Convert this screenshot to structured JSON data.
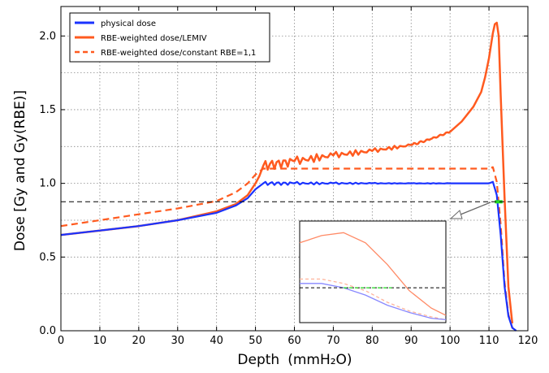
{
  "chart_data": {
    "type": "line",
    "xlabel": "Depth",
    "xlabel_unit": "(mmH₂O)",
    "ylabel": "Dose [Gy and Gy(RBE)]",
    "xlim": [
      0,
      120
    ],
    "ylim": [
      0,
      2.2
    ],
    "x_ticks": [
      0,
      10,
      20,
      30,
      40,
      50,
      60,
      70,
      80,
      90,
      100,
      110,
      120
    ],
    "y_ticks": [
      0.0,
      0.5,
      1.0,
      1.5,
      2.0
    ],
    "y_tick_labels": [
      "0.0",
      "0.5",
      "1.0",
      "1.5",
      "2.0"
    ],
    "grid": true,
    "legend_position": "top-left",
    "reference_line": {
      "y": 0.875,
      "style": "dashed",
      "color": "#000000"
    },
    "series": [
      {
        "name": "physical dose",
        "color": "#1a33ff",
        "style": "solid",
        "x": [
          0,
          10,
          20,
          30,
          40,
          45,
          48,
          50,
          52,
          60,
          70,
          80,
          90,
          100,
          108,
          110,
          111,
          112,
          113,
          114,
          115,
          116,
          117
        ],
        "y": [
          0.65,
          0.68,
          0.71,
          0.75,
          0.8,
          0.85,
          0.9,
          0.96,
          1.0,
          1.0,
          1.0,
          1.0,
          1.0,
          1.0,
          1.0,
          1.0,
          1.01,
          0.92,
          0.65,
          0.3,
          0.1,
          0.02,
          0.0
        ]
      },
      {
        "name": "RBE-weighted dose/LEMIV",
        "color": "#ff5a1f",
        "style": "solid",
        "x": [
          0,
          10,
          20,
          30,
          40,
          45,
          48,
          50,
          51,
          52,
          60,
          70,
          80,
          90,
          95,
          100,
          103,
          106,
          108,
          109,
          110,
          111,
          111.5,
          112,
          112.5,
          113,
          114,
          115,
          116
        ],
        "y": [
          0.65,
          0.68,
          0.71,
          0.75,
          0.81,
          0.86,
          0.92,
          1.0,
          1.05,
          1.12,
          1.15,
          1.19,
          1.22,
          1.26,
          1.3,
          1.35,
          1.42,
          1.52,
          1.62,
          1.72,
          1.85,
          2.02,
          2.08,
          2.09,
          2.0,
          1.6,
          0.9,
          0.3,
          0.05
        ]
      },
      {
        "name": "RBE-weighted dose/constant RBE=1,1",
        "color": "#ff5a1f",
        "style": "dashed",
        "x": [
          0,
          10,
          20,
          30,
          40,
          45,
          48,
          50,
          52,
          60,
          70,
          80,
          90,
          100,
          108,
          110,
          111,
          112,
          113,
          114,
          115,
          116,
          117
        ],
        "y": [
          0.71,
          0.75,
          0.79,
          0.83,
          0.88,
          0.94,
          1.0,
          1.06,
          1.1,
          1.1,
          1.1,
          1.1,
          1.1,
          1.1,
          1.1,
          1.1,
          1.11,
          1.01,
          0.72,
          0.33,
          0.11,
          0.02,
          0.0
        ]
      }
    ],
    "highlight_segment": {
      "x": [
        111.5,
        113.5
      ],
      "y": 0.875,
      "color": "#22dd22"
    },
    "inset": {
      "note": "zoomed view of distal falloff region",
      "series": [
        {
          "name": "RBE-weighted dose/LEMIV",
          "color": "#ff8a66",
          "points": [
            [
              0,
              0.55
            ],
            [
              0.15,
              0.6
            ],
            [
              0.3,
              0.62
            ],
            [
              0.45,
              0.55
            ],
            [
              0.6,
              0.4
            ],
            [
              0.75,
              0.22
            ],
            [
              0.9,
              0.1
            ],
            [
              1,
              0.05
            ]
          ]
        },
        {
          "name": "RBE-weighted dose/constant RBE=1,1",
          "color": "#ffb49c",
          "dashed": true,
          "points": [
            [
              0,
              0.3
            ],
            [
              0.15,
              0.3
            ],
            [
              0.3,
              0.27
            ],
            [
              0.45,
              0.22
            ],
            [
              0.6,
              0.14
            ],
            [
              0.75,
              0.08
            ],
            [
              0.9,
              0.04
            ],
            [
              1,
              0.02
            ]
          ]
        },
        {
          "name": "physical dose",
          "color": "#8888ff",
          "points": [
            [
              0,
              0.27
            ],
            [
              0.15,
              0.27
            ],
            [
              0.3,
              0.24
            ],
            [
              0.45,
              0.19
            ],
            [
              0.6,
              0.12
            ],
            [
              0.75,
              0.07
            ],
            [
              0.9,
              0.03
            ],
            [
              1,
              0.02
            ]
          ]
        }
      ],
      "threshold_y": 0.24
    }
  }
}
